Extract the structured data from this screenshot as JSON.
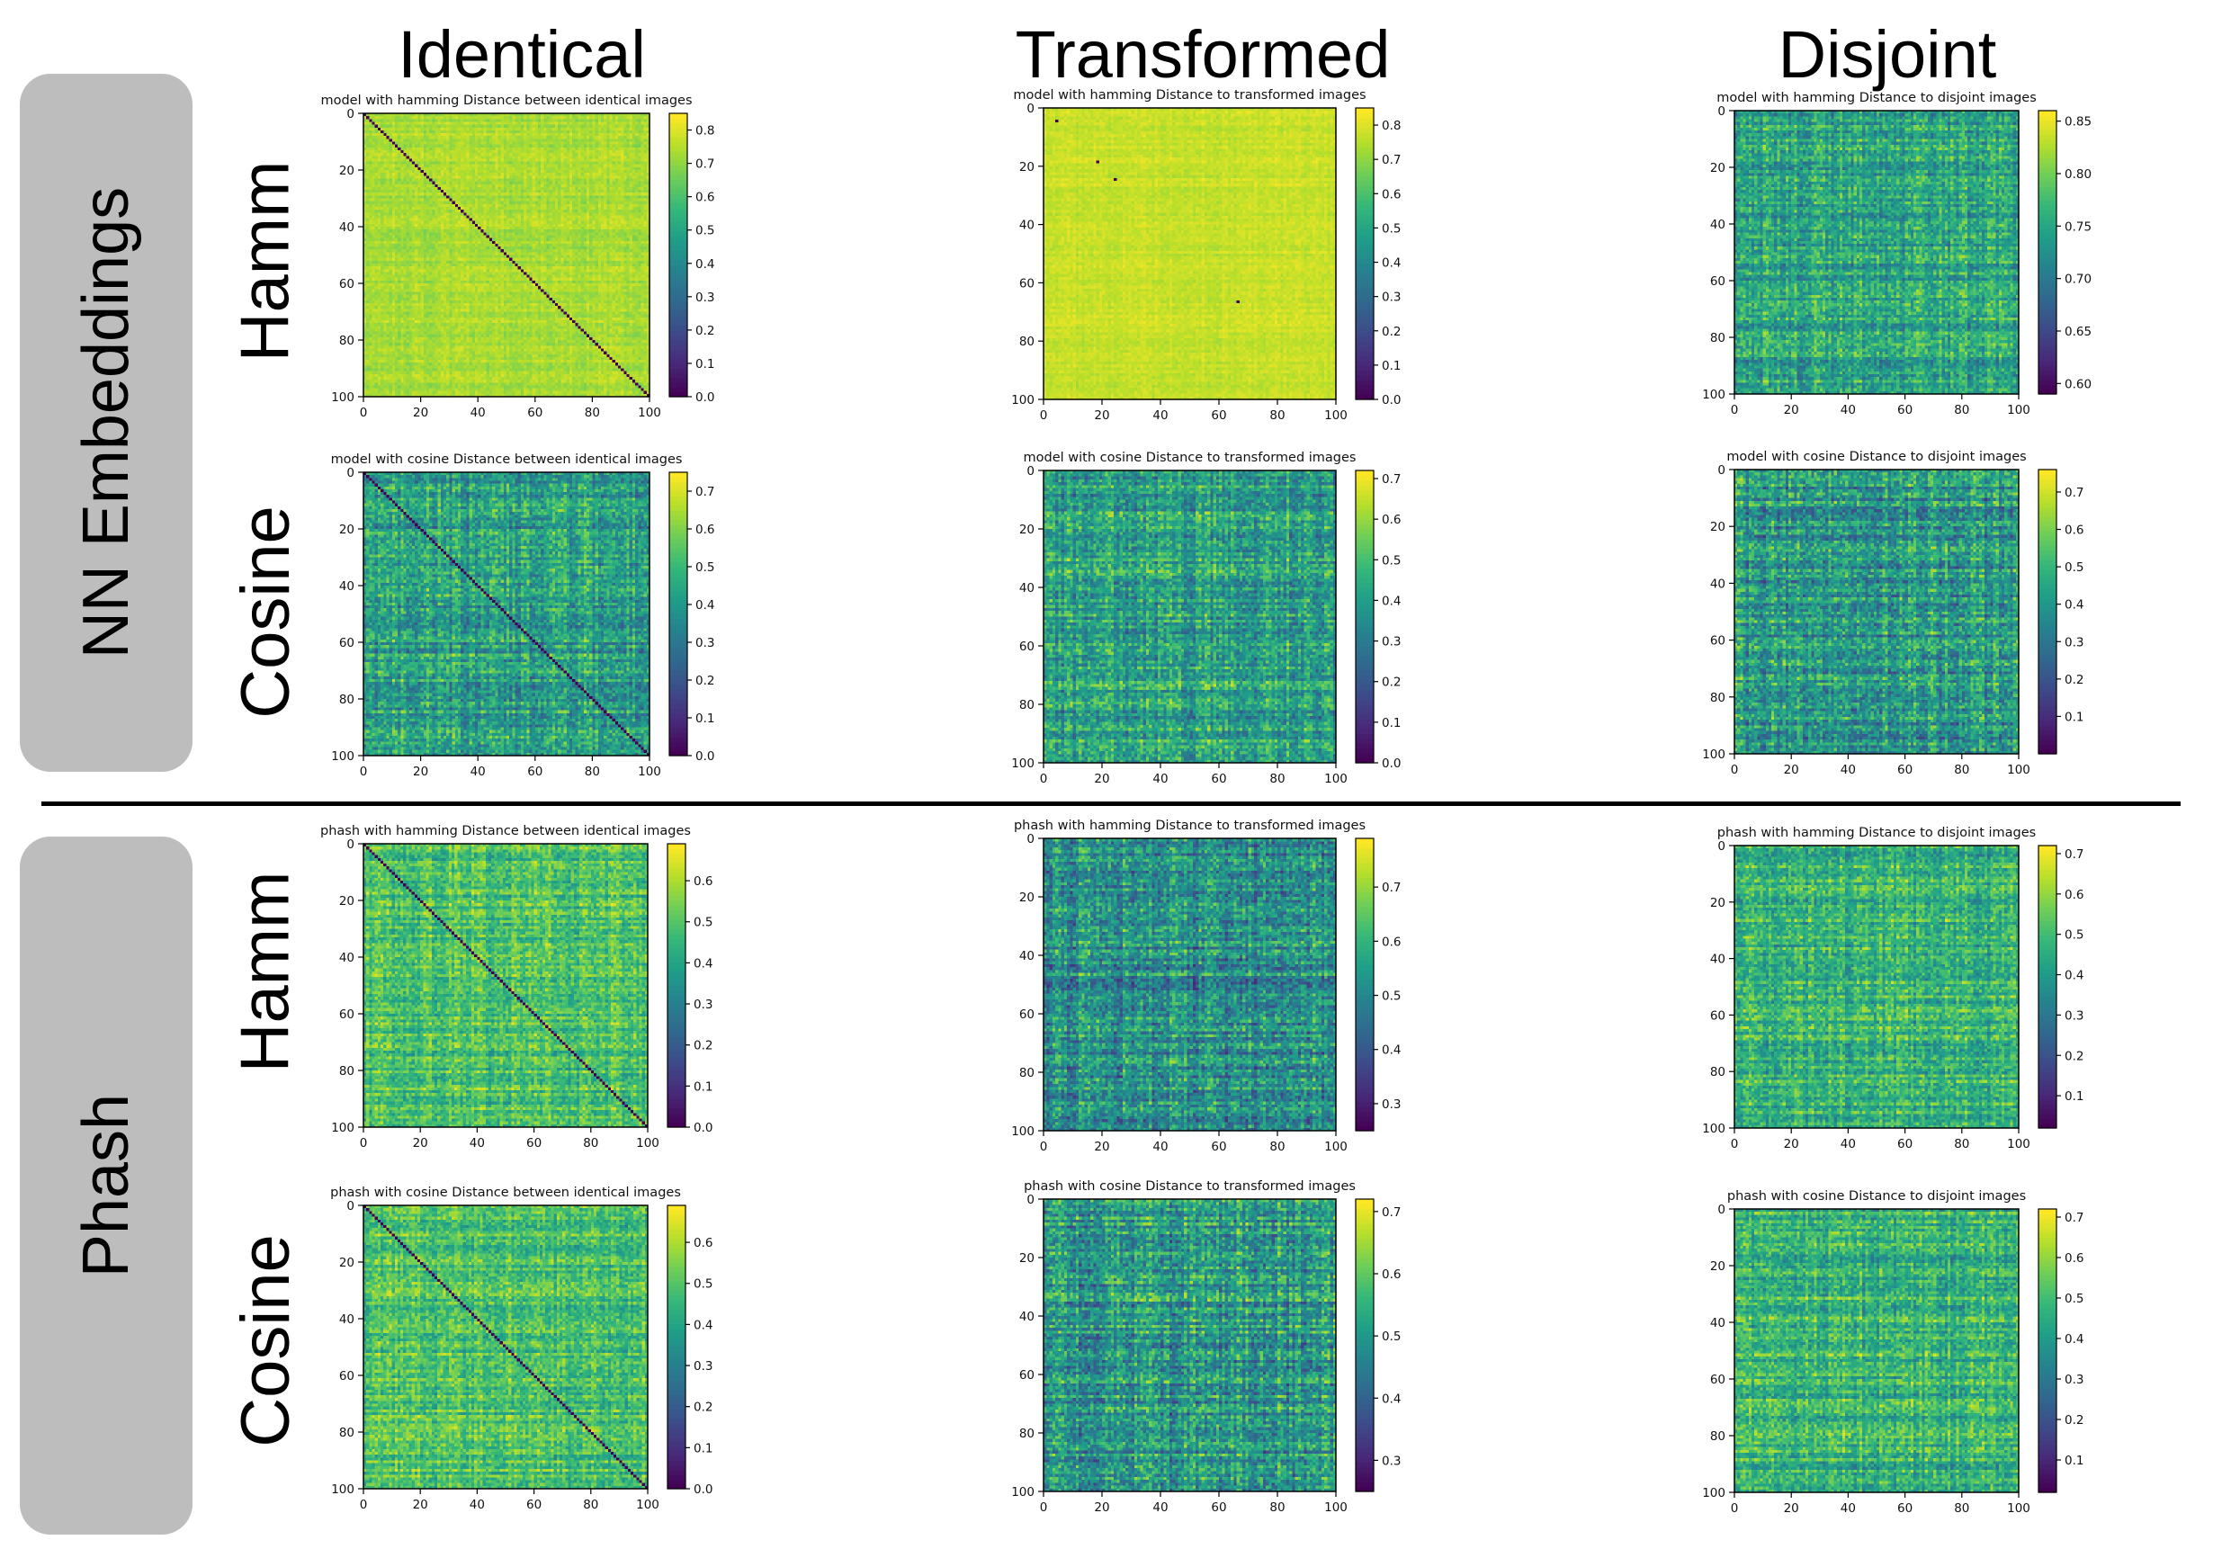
{
  "columns": [
    "Identical",
    "Transformed",
    "Disjoint"
  ],
  "groups": [
    {
      "label": "NN Embeddings",
      "rows": [
        "Hamm",
        "Cosine"
      ]
    },
    {
      "label": "Phash",
      "rows": [
        "Hamm",
        "Cosine"
      ]
    }
  ],
  "colormap": "viridis",
  "chart_data": [
    {
      "type": "heatmap",
      "title": "model with hamming Distance between identical images",
      "x_ticks": [
        0,
        20,
        40,
        60,
        80,
        100
      ],
      "y_ticks": [
        0,
        20,
        40,
        60,
        80,
        100
      ],
      "xlim": [
        0,
        100
      ],
      "ylim": [
        100,
        0
      ],
      "colorbar_ticks": [
        0.0,
        0.1,
        0.2,
        0.3,
        0.4,
        0.5,
        0.6,
        0.7,
        0.8
      ],
      "colorbar_range": [
        0.0,
        0.85
      ],
      "value_range": [
        0.66,
        0.82
      ],
      "diagonal_value": 0.0,
      "outliers": []
    },
    {
      "type": "heatmap",
      "title": "model with hamming Distance to transformed images",
      "x_ticks": [
        0,
        20,
        40,
        60,
        80,
        100
      ],
      "y_ticks": [
        0,
        20,
        40,
        60,
        80,
        100
      ],
      "xlim": [
        0,
        100
      ],
      "ylim": [
        100,
        0
      ],
      "colorbar_ticks": [
        0.0,
        0.1,
        0.2,
        0.3,
        0.4,
        0.5,
        0.6,
        0.7,
        0.8
      ],
      "colorbar_range": [
        0.0,
        0.85
      ],
      "value_range": [
        0.72,
        0.84
      ],
      "diagonal_value": null,
      "outliers": [
        [
          4,
          4,
          0.0
        ],
        [
          18,
          18,
          0.0
        ],
        [
          24,
          24,
          0.0
        ],
        [
          66,
          66,
          0.0
        ]
      ]
    },
    {
      "type": "heatmap",
      "title": "model with hamming Distance to disjoint images",
      "x_ticks": [
        0,
        20,
        40,
        60,
        80,
        100
      ],
      "y_ticks": [
        0,
        20,
        40,
        60,
        80,
        100
      ],
      "xlim": [
        0,
        100
      ],
      "ylim": [
        100,
        0
      ],
      "colorbar_ticks": [
        0.6,
        0.65,
        0.7,
        0.75,
        0.8,
        0.85
      ],
      "colorbar_range": [
        0.59,
        0.86
      ],
      "value_range": [
        0.66,
        0.84
      ],
      "diagonal_value": null,
      "outliers": []
    },
    {
      "type": "heatmap",
      "title": "model with cosine Distance between identical images",
      "x_ticks": [
        0,
        20,
        40,
        60,
        80,
        100
      ],
      "y_ticks": [
        0,
        20,
        40,
        60,
        80,
        100
      ],
      "xlim": [
        0,
        100
      ],
      "ylim": [
        100,
        0
      ],
      "colorbar_ticks": [
        0.0,
        0.1,
        0.2,
        0.3,
        0.4,
        0.5,
        0.6,
        0.7
      ],
      "colorbar_range": [
        0.0,
        0.75
      ],
      "value_range": [
        0.15,
        0.7
      ],
      "diagonal_value": 0.0,
      "outliers": []
    },
    {
      "type": "heatmap",
      "title": "model with cosine Distance to transformed images",
      "x_ticks": [
        0,
        20,
        40,
        60,
        80,
        100
      ],
      "y_ticks": [
        0,
        20,
        40,
        60,
        80,
        100
      ],
      "xlim": [
        0,
        100
      ],
      "ylim": [
        100,
        0
      ],
      "colorbar_ticks": [
        0.0,
        0.1,
        0.2,
        0.3,
        0.4,
        0.5,
        0.6,
        0.7
      ],
      "colorbar_range": [
        0.0,
        0.72
      ],
      "value_range": [
        0.15,
        0.68
      ],
      "diagonal_value": null,
      "outliers": []
    },
    {
      "type": "heatmap",
      "title": "model with cosine Distance to disjoint images",
      "x_ticks": [
        0,
        20,
        40,
        60,
        80,
        100
      ],
      "y_ticks": [
        0,
        20,
        40,
        60,
        80,
        100
      ],
      "xlim": [
        0,
        100
      ],
      "ylim": [
        100,
        0
      ],
      "colorbar_ticks": [
        0.1,
        0.2,
        0.3,
        0.4,
        0.5,
        0.6,
        0.7
      ],
      "colorbar_range": [
        0.0,
        0.76
      ],
      "value_range": [
        0.1,
        0.72
      ],
      "diagonal_value": null,
      "outliers": []
    },
    {
      "type": "heatmap",
      "title": "phash with hamming Distance between identical images",
      "x_ticks": [
        0,
        20,
        40,
        60,
        80,
        100
      ],
      "y_ticks": [
        0,
        20,
        40,
        60,
        80,
        100
      ],
      "xlim": [
        0,
        100
      ],
      "ylim": [
        100,
        0
      ],
      "colorbar_ticks": [
        0.0,
        0.1,
        0.2,
        0.3,
        0.4,
        0.5,
        0.6
      ],
      "colorbar_range": [
        0.0,
        0.69
      ],
      "value_range": [
        0.3,
        0.68
      ],
      "diagonal_value": 0.0,
      "outliers": []
    },
    {
      "type": "heatmap",
      "title": "phash with hamming Distance to transformed images",
      "x_ticks": [
        0,
        20,
        40,
        60,
        80,
        100
      ],
      "y_ticks": [
        0,
        20,
        40,
        60,
        80,
        100
      ],
      "xlim": [
        0,
        100
      ],
      "ylim": [
        100,
        0
      ],
      "colorbar_ticks": [
        0.3,
        0.4,
        0.5,
        0.6,
        0.7
      ],
      "colorbar_range": [
        0.25,
        0.79
      ],
      "value_range": [
        0.3,
        0.75
      ],
      "diagonal_value": null,
      "outliers": []
    },
    {
      "type": "heatmap",
      "title": "phash with hamming Distance to disjoint images",
      "x_ticks": [
        0,
        20,
        40,
        60,
        80,
        100
      ],
      "y_ticks": [
        0,
        20,
        40,
        60,
        80,
        100
      ],
      "xlim": [
        0,
        100
      ],
      "ylim": [
        100,
        0
      ],
      "colorbar_ticks": [
        0.1,
        0.2,
        0.3,
        0.4,
        0.5,
        0.6,
        0.7
      ],
      "colorbar_range": [
        0.02,
        0.72
      ],
      "value_range": [
        0.25,
        0.7
      ],
      "diagonal_value": null,
      "outliers": []
    },
    {
      "type": "heatmap",
      "title": "phash with cosine Distance between identical images",
      "x_ticks": [
        0,
        20,
        40,
        60,
        80,
        100
      ],
      "y_ticks": [
        0,
        20,
        40,
        60,
        80,
        100
      ],
      "xlim": [
        0,
        100
      ],
      "ylim": [
        100,
        0
      ],
      "colorbar_ticks": [
        0.0,
        0.1,
        0.2,
        0.3,
        0.4,
        0.5,
        0.6
      ],
      "colorbar_range": [
        0.0,
        0.69
      ],
      "value_range": [
        0.3,
        0.68
      ],
      "diagonal_value": 0.0,
      "outliers": []
    },
    {
      "type": "heatmap",
      "title": "phash with cosine Distance to transformed images",
      "x_ticks": [
        0,
        20,
        40,
        60,
        80,
        100
      ],
      "y_ticks": [
        0,
        20,
        40,
        60,
        80,
        100
      ],
      "xlim": [
        0,
        100
      ],
      "ylim": [
        100,
        0
      ],
      "colorbar_ticks": [
        0.3,
        0.4,
        0.5,
        0.6,
        0.7
      ],
      "colorbar_range": [
        0.25,
        0.72
      ],
      "value_range": [
        0.3,
        0.7
      ],
      "diagonal_value": null,
      "outliers": []
    },
    {
      "type": "heatmap",
      "title": "phash with cosine Distance to disjoint images",
      "x_ticks": [
        0,
        20,
        40,
        60,
        80,
        100
      ],
      "y_ticks": [
        0,
        20,
        40,
        60,
        80,
        100
      ],
      "xlim": [
        0,
        100
      ],
      "ylim": [
        100,
        0
      ],
      "colorbar_ticks": [
        0.1,
        0.2,
        0.3,
        0.4,
        0.5,
        0.6,
        0.7
      ],
      "colorbar_range": [
        0.02,
        0.72
      ],
      "value_range": [
        0.25,
        0.7
      ],
      "diagonal_value": null,
      "outliers": []
    }
  ]
}
